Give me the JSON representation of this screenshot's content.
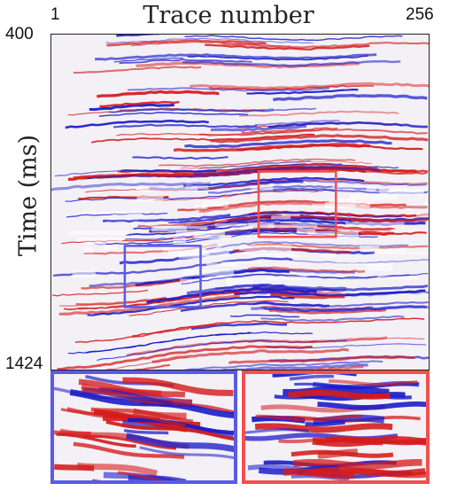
{
  "title": "Trace number",
  "ylabel": "Time (ms)",
  "x_ticks": {
    "start": "1",
    "end": "256"
  },
  "y_ticks": {
    "top": "400",
    "bottom": "1424"
  },
  "colors": {
    "positive": "#d41c1c",
    "negative": "#1a1ac8",
    "blue_box": "#5a5ae6",
    "red_box": "#f05050"
  },
  "highlight_boxes": [
    {
      "name": "red-region-box",
      "color": "red",
      "trace_range": [
        141,
        193
      ],
      "time_range_ms": [
        819,
        1018
      ]
    },
    {
      "name": "blue-region-box",
      "color": "blue",
      "trace_range": [
        51,
        102
      ],
      "time_range_ms": [
        1045,
        1231
      ]
    }
  ],
  "insets": [
    {
      "name": "blue-inset",
      "color": "blue",
      "source": "blue-region-box"
    },
    {
      "name": "red-inset",
      "color": "red",
      "source": "red-region-box"
    }
  ]
}
